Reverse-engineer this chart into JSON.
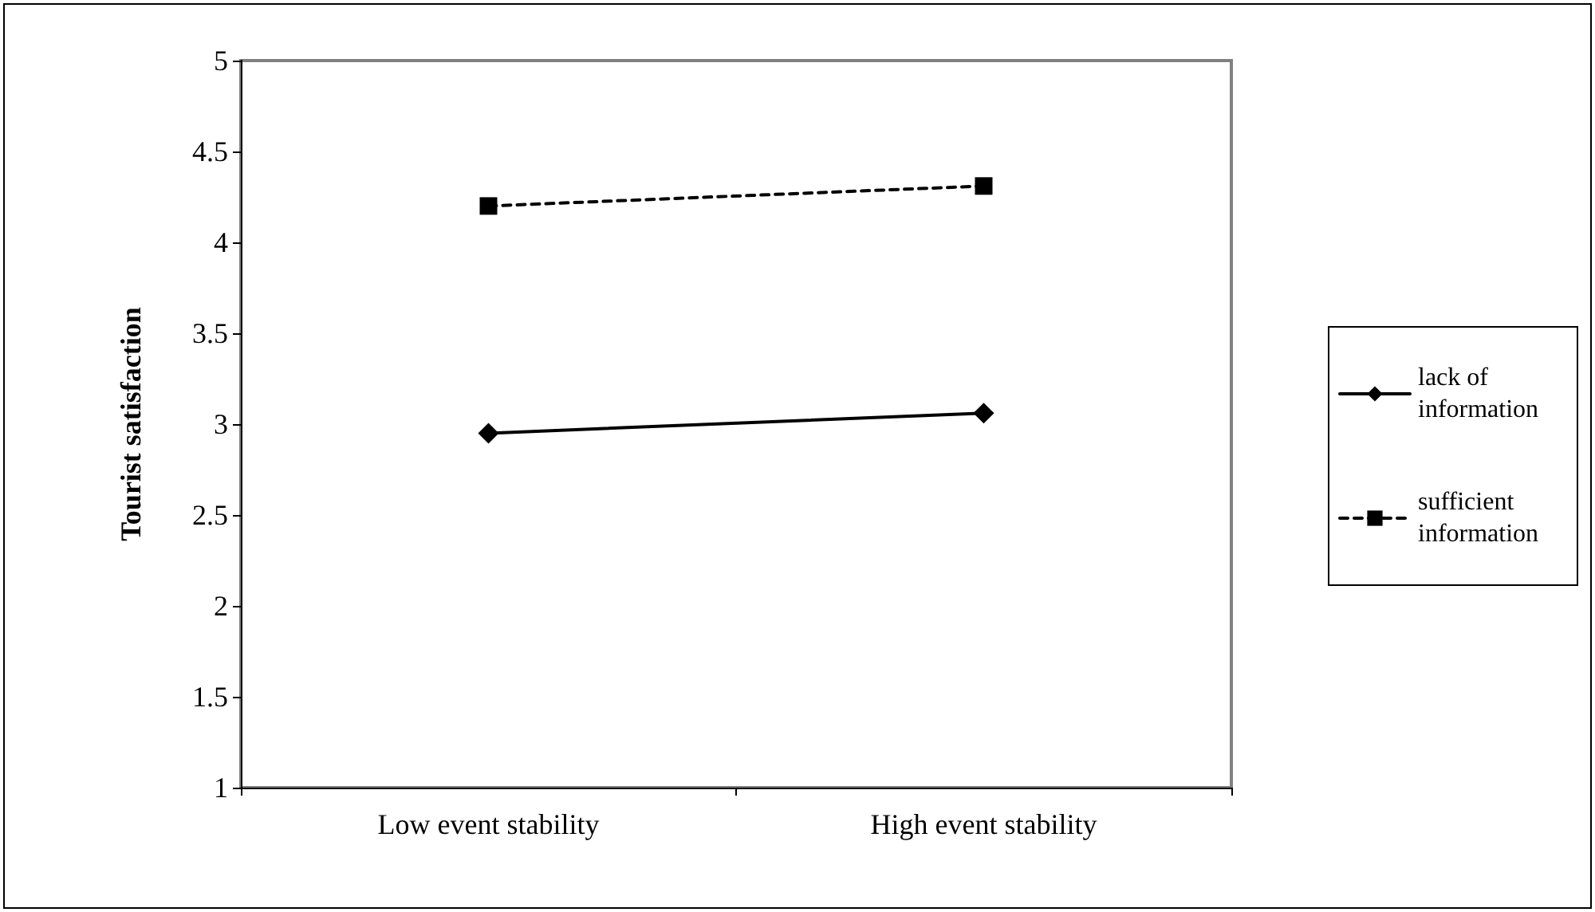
{
  "chart_data": {
    "type": "line",
    "ylabel": "Tourist satisfaction",
    "categories": [
      "Low event stability",
      "High event stability"
    ],
    "series": [
      {
        "name": "lack of information",
        "color": "#000000",
        "values": [
          2.95,
          3.06
        ],
        "marker": "diamond",
        "line_style": "solid"
      },
      {
        "name": "sufficient information",
        "color": "#000000",
        "values": [
          4.2,
          4.31
        ],
        "marker": "square",
        "line_style": "dashed"
      }
    ],
    "ylim": [
      1,
      5
    ],
    "yticks": [
      1,
      1.5,
      2,
      2.5,
      3,
      3.5,
      4,
      4.5,
      5
    ],
    "grid": false,
    "legend": "right"
  }
}
